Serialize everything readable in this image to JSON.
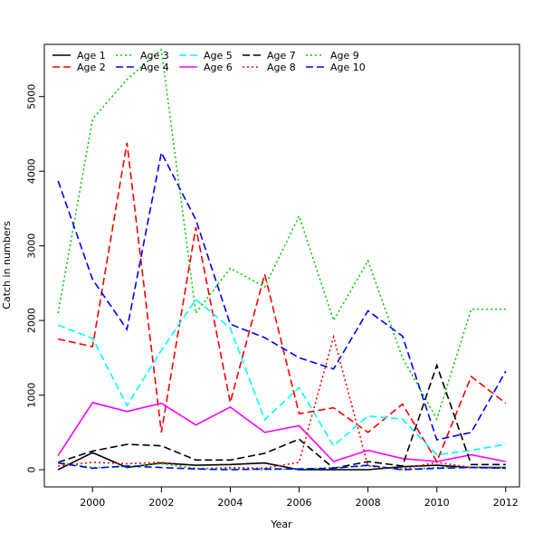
{
  "chart_data": {
    "type": "line",
    "xlabel": "Year",
    "ylabel": "Catch in numbers",
    "xlim": [
      1998.6,
      2012.4
    ],
    "ylim": [
      -230,
      5700
    ],
    "x_ticks": [
      2000,
      2002,
      2004,
      2006,
      2008,
      2010,
      2012
    ],
    "y_ticks": [
      0,
      1000,
      2000,
      3000,
      4000,
      5000
    ],
    "x_tick_labels": [
      "2000",
      "2002",
      "2004",
      "2006",
      "2008",
      "2010",
      "2012"
    ],
    "y_tick_labels": [
      "0",
      "1000",
      "2000",
      "3000",
      "4000",
      "5000"
    ],
    "grid": false,
    "legend_position": "top-left",
    "x": [
      1999,
      2000,
      2001,
      2002,
      2003,
      2004,
      2005,
      2006,
      2007,
      2008,
      2009,
      2010,
      2011,
      2012
    ],
    "series": [
      {
        "name": "Age 1",
        "color": "#000000",
        "dash": "solid",
        "values": [
          0,
          230,
          30,
          90,
          60,
          70,
          90,
          0,
          0,
          0,
          40,
          60,
          30,
          30
        ]
      },
      {
        "name": "Age 2",
        "color": "#ff0000",
        "dash": "dashed",
        "values": [
          1750,
          1650,
          4380,
          500,
          3250,
          900,
          2620,
          750,
          830,
          500,
          880,
          110,
          1250,
          890
        ]
      },
      {
        "name": "Age 3",
        "color": "#00cd00",
        "dash": "dotted",
        "values": [
          2100,
          4700,
          5230,
          5630,
          2100,
          2700,
          2450,
          3400,
          2000,
          2800,
          1500,
          680,
          2150,
          2150
        ]
      },
      {
        "name": "Age 4",
        "color": "#0000ff",
        "dash": "dashed",
        "values": [
          3870,
          2550,
          1880,
          4250,
          3350,
          1950,
          1770,
          1500,
          1350,
          2130,
          1790,
          400,
          500,
          1320
        ]
      },
      {
        "name": "Age 5",
        "color": "#00ffff",
        "dash": "dashed",
        "values": [
          1940,
          1760,
          860,
          1600,
          2280,
          1900,
          670,
          1100,
          320,
          720,
          680,
          200,
          260,
          340
        ]
      },
      {
        "name": "Age 6",
        "color": "#ff00ff",
        "dash": "solid",
        "values": [
          190,
          900,
          780,
          890,
          600,
          840,
          500,
          590,
          110,
          260,
          150,
          110,
          200,
          110
        ]
      },
      {
        "name": "Age 7",
        "color": "#000000",
        "dash": "dashed",
        "values": [
          100,
          250,
          340,
          320,
          130,
          130,
          220,
          410,
          20,
          110,
          50,
          1400,
          70,
          70
        ]
      },
      {
        "name": "Age 8",
        "color": "#ff0000",
        "dash": "dotted",
        "values": [
          50,
          100,
          80,
          100,
          10,
          30,
          20,
          100,
          1780,
          50,
          10,
          100,
          30,
          20
        ]
      },
      {
        "name": "Age 9",
        "color": "#00cd00",
        "dash": "dotted",
        "values": [
          100,
          30,
          40,
          80,
          20,
          10,
          0,
          10,
          30,
          50,
          0,
          30,
          30,
          30
        ]
      },
      {
        "name": "Age 10",
        "color": "#0000ff",
        "dash": "dashed",
        "values": [
          90,
          20,
          50,
          30,
          10,
          0,
          10,
          10,
          20,
          60,
          0,
          20,
          30,
          20
        ]
      }
    ]
  }
}
